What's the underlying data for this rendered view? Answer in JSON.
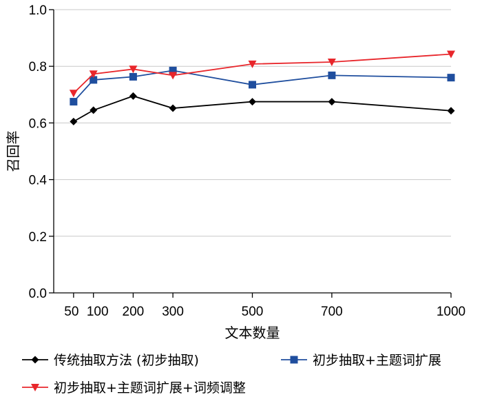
{
  "chart_data": {
    "type": "line",
    "xlabel": "文本数量",
    "ylabel": "召回率",
    "x": [
      50,
      100,
      200,
      300,
      500,
      700,
      1000
    ],
    "x_tick_labels": [
      "50",
      "100",
      "200",
      "300",
      "500",
      "700",
      "1000"
    ],
    "ylim": [
      0,
      1.0
    ],
    "y_ticks": [
      0.0,
      0.2,
      0.4,
      0.6,
      0.8,
      1.0
    ],
    "y_tick_labels": [
      "0.0",
      "0.2",
      "0.4",
      "0.6",
      "0.8",
      "1.0"
    ],
    "grid": "horizontal",
    "legend_position": "bottom",
    "series": [
      {
        "name": "传统抽取方法 (初步抽取)",
        "color": "#000000",
        "marker": "diamond",
        "values": [
          0.605,
          0.645,
          0.695,
          0.652,
          0.675,
          0.675,
          0.643
        ]
      },
      {
        "name": "初步抽取+主题词扩展",
        "color": "#1f4e9e",
        "marker": "square",
        "values": [
          0.675,
          0.752,
          0.763,
          0.785,
          0.735,
          0.768,
          0.76
        ]
      },
      {
        "name": "初步抽取+主题词扩展+词频调整",
        "color": "#e8262b",
        "marker": "triangle-down",
        "values": [
          0.705,
          0.773,
          0.79,
          0.768,
          0.808,
          0.815,
          0.843
        ]
      }
    ]
  }
}
